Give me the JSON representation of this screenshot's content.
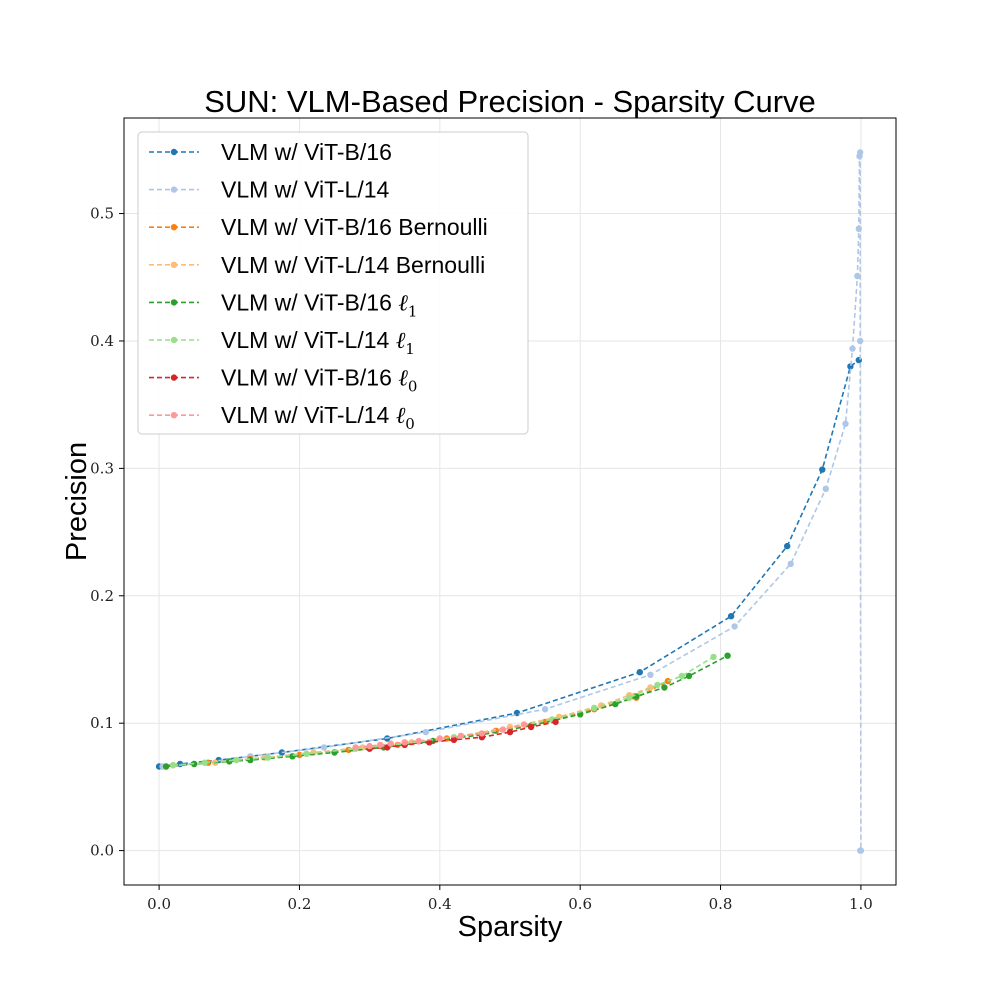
{
  "chart_data": {
    "type": "line",
    "title": "SUN: VLM-Based Precision - Sparsity Curve",
    "xlabel": "Sparsity",
    "ylabel": "Precision",
    "xlim": [
      -0.05,
      1.05
    ],
    "ylim": [
      -0.027,
      0.575
    ],
    "xticks": [
      0.0,
      0.2,
      0.4,
      0.6,
      0.8,
      1.0
    ],
    "xtick_labels": [
      "0.0",
      "0.2",
      "0.4",
      "0.6",
      "0.8",
      "1.0"
    ],
    "yticks": [
      0.0,
      0.1,
      0.2,
      0.3,
      0.4,
      0.5
    ],
    "ytick_labels": [
      "0.0",
      "0.1",
      "0.2",
      "0.3",
      "0.4",
      "0.5"
    ],
    "grid": true,
    "legend_position": "top-left",
    "series": [
      {
        "name": "VLM w/ ViT-B/16",
        "legend_base": "VLM w/ ViT-B/16",
        "legend_math": "",
        "legend_sub": "",
        "color": "#1f77b4",
        "x": [
          0.0,
          0.03,
          0.085,
          0.175,
          0.325,
          0.51,
          0.685,
          0.815,
          0.895,
          0.945,
          0.985,
          0.997
        ],
        "y": [
          0.066,
          0.068,
          0.071,
          0.077,
          0.088,
          0.108,
          0.14,
          0.184,
          0.239,
          0.299,
          0.38,
          0.385
        ]
      },
      {
        "name": "VLM w/ ViT-L/14",
        "legend_base": "VLM w/ ViT-L/14",
        "legend_math": "",
        "legend_sub": "",
        "color": "#aec7e8",
        "x": [
          0.005,
          0.05,
          0.13,
          0.235,
          0.38,
          0.55,
          0.7,
          0.82,
          0.9,
          0.95,
          0.978,
          0.988,
          0.995,
          0.997,
          0.998,
          0.999,
          0.999,
          1.0,
          0.999
        ],
        "y": [
          0.066,
          0.068,
          0.074,
          0.081,
          0.093,
          0.111,
          0.138,
          0.176,
          0.225,
          0.284,
          0.335,
          0.394,
          0.451,
          0.488,
          0.545,
          0.548,
          0.4,
          0.0,
          0.0
        ]
      },
      {
        "name": "VLM w/ ViT-B/16 Bernoulli",
        "legend_base": "VLM w/ ViT-B/16 Bernoulli",
        "legend_math": "",
        "legend_sub": "",
        "color": "#ff7f0e",
        "x": [
          0.01,
          0.07,
          0.13,
          0.2,
          0.27,
          0.34,
          0.41,
          0.48,
          0.55,
          0.62,
          0.68,
          0.725
        ],
        "y": [
          0.066,
          0.069,
          0.072,
          0.075,
          0.079,
          0.083,
          0.088,
          0.094,
          0.101,
          0.111,
          0.12,
          0.133
        ]
      },
      {
        "name": "VLM w/ ViT-L/14 Bernoulli",
        "legend_base": "VLM w/ ViT-L/14 Bernoulli",
        "legend_math": "",
        "legend_sub": "",
        "color": "#ffbb78",
        "x": [
          0.02,
          0.08,
          0.15,
          0.22,
          0.29,
          0.36,
          0.43,
          0.5,
          0.57,
          0.63,
          0.67,
          0.7
        ],
        "y": [
          0.067,
          0.069,
          0.073,
          0.077,
          0.081,
          0.085,
          0.09,
          0.097,
          0.105,
          0.114,
          0.122,
          0.128
        ]
      },
      {
        "name": "VLM w/ ViT-B/16 ℓ1",
        "legend_base": "VLM w/ ViT-B/16 ",
        "legend_math": "ℓ",
        "legend_sub": "1",
        "color": "#2ca02c",
        "x": [
          0.01,
          0.05,
          0.1,
          0.13,
          0.19,
          0.25,
          0.32,
          0.39,
          0.46,
          0.53,
          0.6,
          0.65,
          0.68,
          0.72,
          0.755,
          0.81
        ],
        "y": [
          0.066,
          0.068,
          0.07,
          0.071,
          0.074,
          0.077,
          0.081,
          0.086,
          0.091,
          0.098,
          0.107,
          0.115,
          0.121,
          0.128,
          0.137,
          0.153
        ]
      },
      {
        "name": "VLM w/ ViT-L/14 ℓ1",
        "legend_base": "VLM w/ ViT-L/14 ",
        "legend_math": "ℓ",
        "legend_sub": "1",
        "color": "#98df8a",
        "x": [
          0.02,
          0.065,
          0.11,
          0.155,
          0.21,
          0.28,
          0.35,
          0.42,
          0.49,
          0.56,
          0.62,
          0.67,
          0.71,
          0.745,
          0.79
        ],
        "y": [
          0.067,
          0.069,
          0.071,
          0.073,
          0.076,
          0.08,
          0.084,
          0.089,
          0.095,
          0.103,
          0.112,
          0.12,
          0.13,
          0.137,
          0.152
        ]
      },
      {
        "name": "VLM w/ ViT-B/16 ℓ0",
        "legend_base": "VLM w/ ViT-B/16 ",
        "legend_math": "ℓ",
        "legend_sub": "0",
        "color": "#d62728",
        "x": [
          0.3,
          0.325,
          0.35,
          0.385,
          0.42,
          0.46,
          0.5,
          0.53,
          0.565
        ],
        "y": [
          0.08,
          0.081,
          0.083,
          0.085,
          0.087,
          0.089,
          0.093,
          0.097,
          0.101
        ]
      },
      {
        "name": "VLM w/ ViT-L/14 ℓ0",
        "legend_base": "VLM w/ ViT-L/14 ",
        "legend_math": "ℓ",
        "legend_sub": "0",
        "color": "#ff9896",
        "x": [
          0.28,
          0.3,
          0.315,
          0.33,
          0.35,
          0.37,
          0.4,
          0.43,
          0.46,
          0.49,
          0.52
        ],
        "y": [
          0.081,
          0.082,
          0.083,
          0.084,
          0.085,
          0.086,
          0.088,
          0.09,
          0.092,
          0.095,
          0.099
        ]
      }
    ]
  }
}
